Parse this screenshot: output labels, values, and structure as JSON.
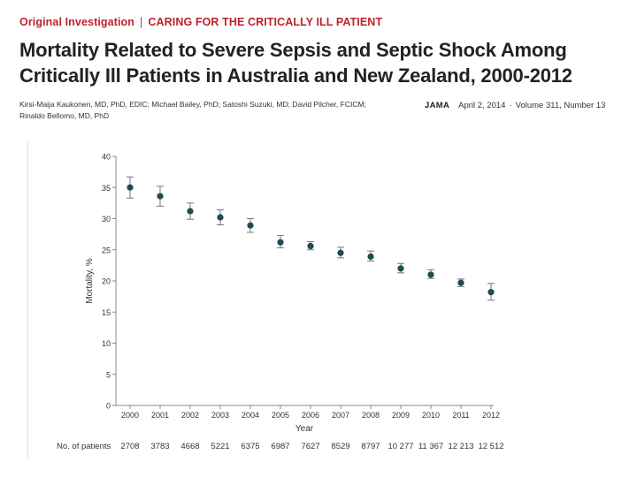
{
  "header": {
    "section": "Original Investigation",
    "separator": "|",
    "topic": "CARING FOR THE CRITICALLY ILL PATIENT",
    "title_line1": "Mortality Related to Severe Sepsis and Septic Shock Among",
    "title_line2": "Critically Ill Patients in Australia and New Zealand, 2000-2012",
    "authors_line1": "Kirsi-Maija Kaukonen, MD, PhD, EDIC; Michael Bailey, PhD; Satoshi Suzuki, MD; David Pilcher, FCICM;",
    "authors_line2": "Rinaldo Bellomo, MD, PhD",
    "journal": "JAMA",
    "date": "April 2, 2014",
    "volume": "Volume 311, Number 13"
  },
  "chart_data": {
    "type": "scatter",
    "title": "",
    "xlabel": "Year",
    "ylabel": "Mortality, %",
    "ylim": [
      0,
      40
    ],
    "y_ticks": [
      0,
      5,
      10,
      15,
      20,
      25,
      30,
      35,
      40
    ],
    "categories": [
      "2000",
      "2001",
      "2002",
      "2003",
      "2004",
      "2005",
      "2006",
      "2007",
      "2008",
      "2009",
      "2010",
      "2011",
      "2012"
    ],
    "values": [
      35.0,
      33.6,
      31.2,
      30.2,
      28.9,
      26.2,
      25.6,
      24.5,
      23.9,
      22.0,
      21.0,
      19.7,
      18.2
    ],
    "error_low": [
      33.3,
      32.0,
      29.9,
      29.0,
      27.8,
      25.3,
      25.0,
      23.7,
      23.2,
      21.3,
      20.4,
      19.1,
      16.9
    ],
    "error_high": [
      36.7,
      35.2,
      32.5,
      31.4,
      30.0,
      27.3,
      26.3,
      25.4,
      24.8,
      22.8,
      21.8,
      20.3,
      19.6
    ],
    "footer_label": "No. of patients",
    "patients": [
      "2708",
      "3783",
      "4668",
      "5221",
      "6375",
      "6987",
      "7627",
      "8529",
      "8797",
      "10 277",
      "11 367",
      "12 213",
      "12 512"
    ],
    "colors": {
      "marker": "#1f4a52",
      "axis": "#888888",
      "text": "#333333"
    }
  }
}
